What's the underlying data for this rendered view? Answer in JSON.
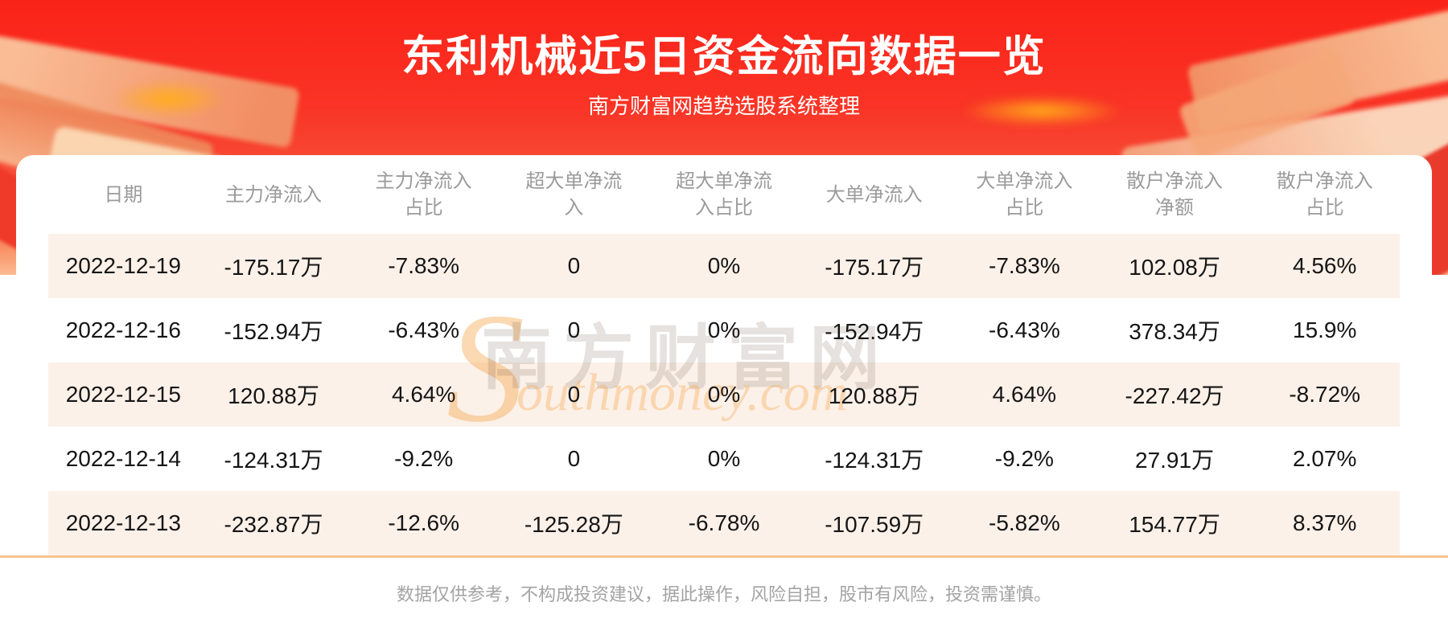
{
  "banner": {
    "title": "东利机械近5日资金流向数据一览",
    "subtitle": "南方财富网趋势选股系统整理"
  },
  "watermark": {
    "cn": "南方财富网",
    "en_big": "S",
    "en_rest": "outhmoney.com"
  },
  "table": {
    "columns": [
      "日期",
      "主力净流入",
      "主力净流入\n占比",
      "超大单净流\n入",
      "超大单净流\n入占比",
      "大单净流入",
      "大单净流入\n占比",
      "散户净流入\n净额",
      "散户净流入\n占比"
    ],
    "rows": [
      [
        "2022-12-19",
        "-175.17万",
        "-7.83%",
        "0",
        "0%",
        "-175.17万",
        "-7.83%",
        "102.08万",
        "4.56%"
      ],
      [
        "2022-12-16",
        "-152.94万",
        "-6.43%",
        "0",
        "0%",
        "-152.94万",
        "-6.43%",
        "378.34万",
        "15.9%"
      ],
      [
        "2022-12-15",
        "120.88万",
        "4.64%",
        "0",
        "0%",
        "120.88万",
        "4.64%",
        "-227.42万",
        "-8.72%"
      ],
      [
        "2022-12-14",
        "-124.31万",
        "-9.2%",
        "0",
        "0%",
        "-124.31万",
        "-9.2%",
        "27.91万",
        "2.07%"
      ],
      [
        "2022-12-13",
        "-232.87万",
        "-12.6%",
        "-125.28万",
        "-6.78%",
        "-107.59万",
        "-5.82%",
        "154.77万",
        "8.37%"
      ]
    ]
  },
  "footer": {
    "disclaimer": "数据仅供参考，不构成投资建议，据此操作，风险自担，股市有风险，投资需谨慎。"
  },
  "colors": {
    "banner_red_top": "#FB2318",
    "banner_orange_bottom": "#FCBA92",
    "stripe_peach": "#FCF1E9",
    "divider_orange": "#F7C48E",
    "header_gray": "#9B9B9B",
    "text_dark": "#151515",
    "title_white": "#FFFFFF"
  }
}
